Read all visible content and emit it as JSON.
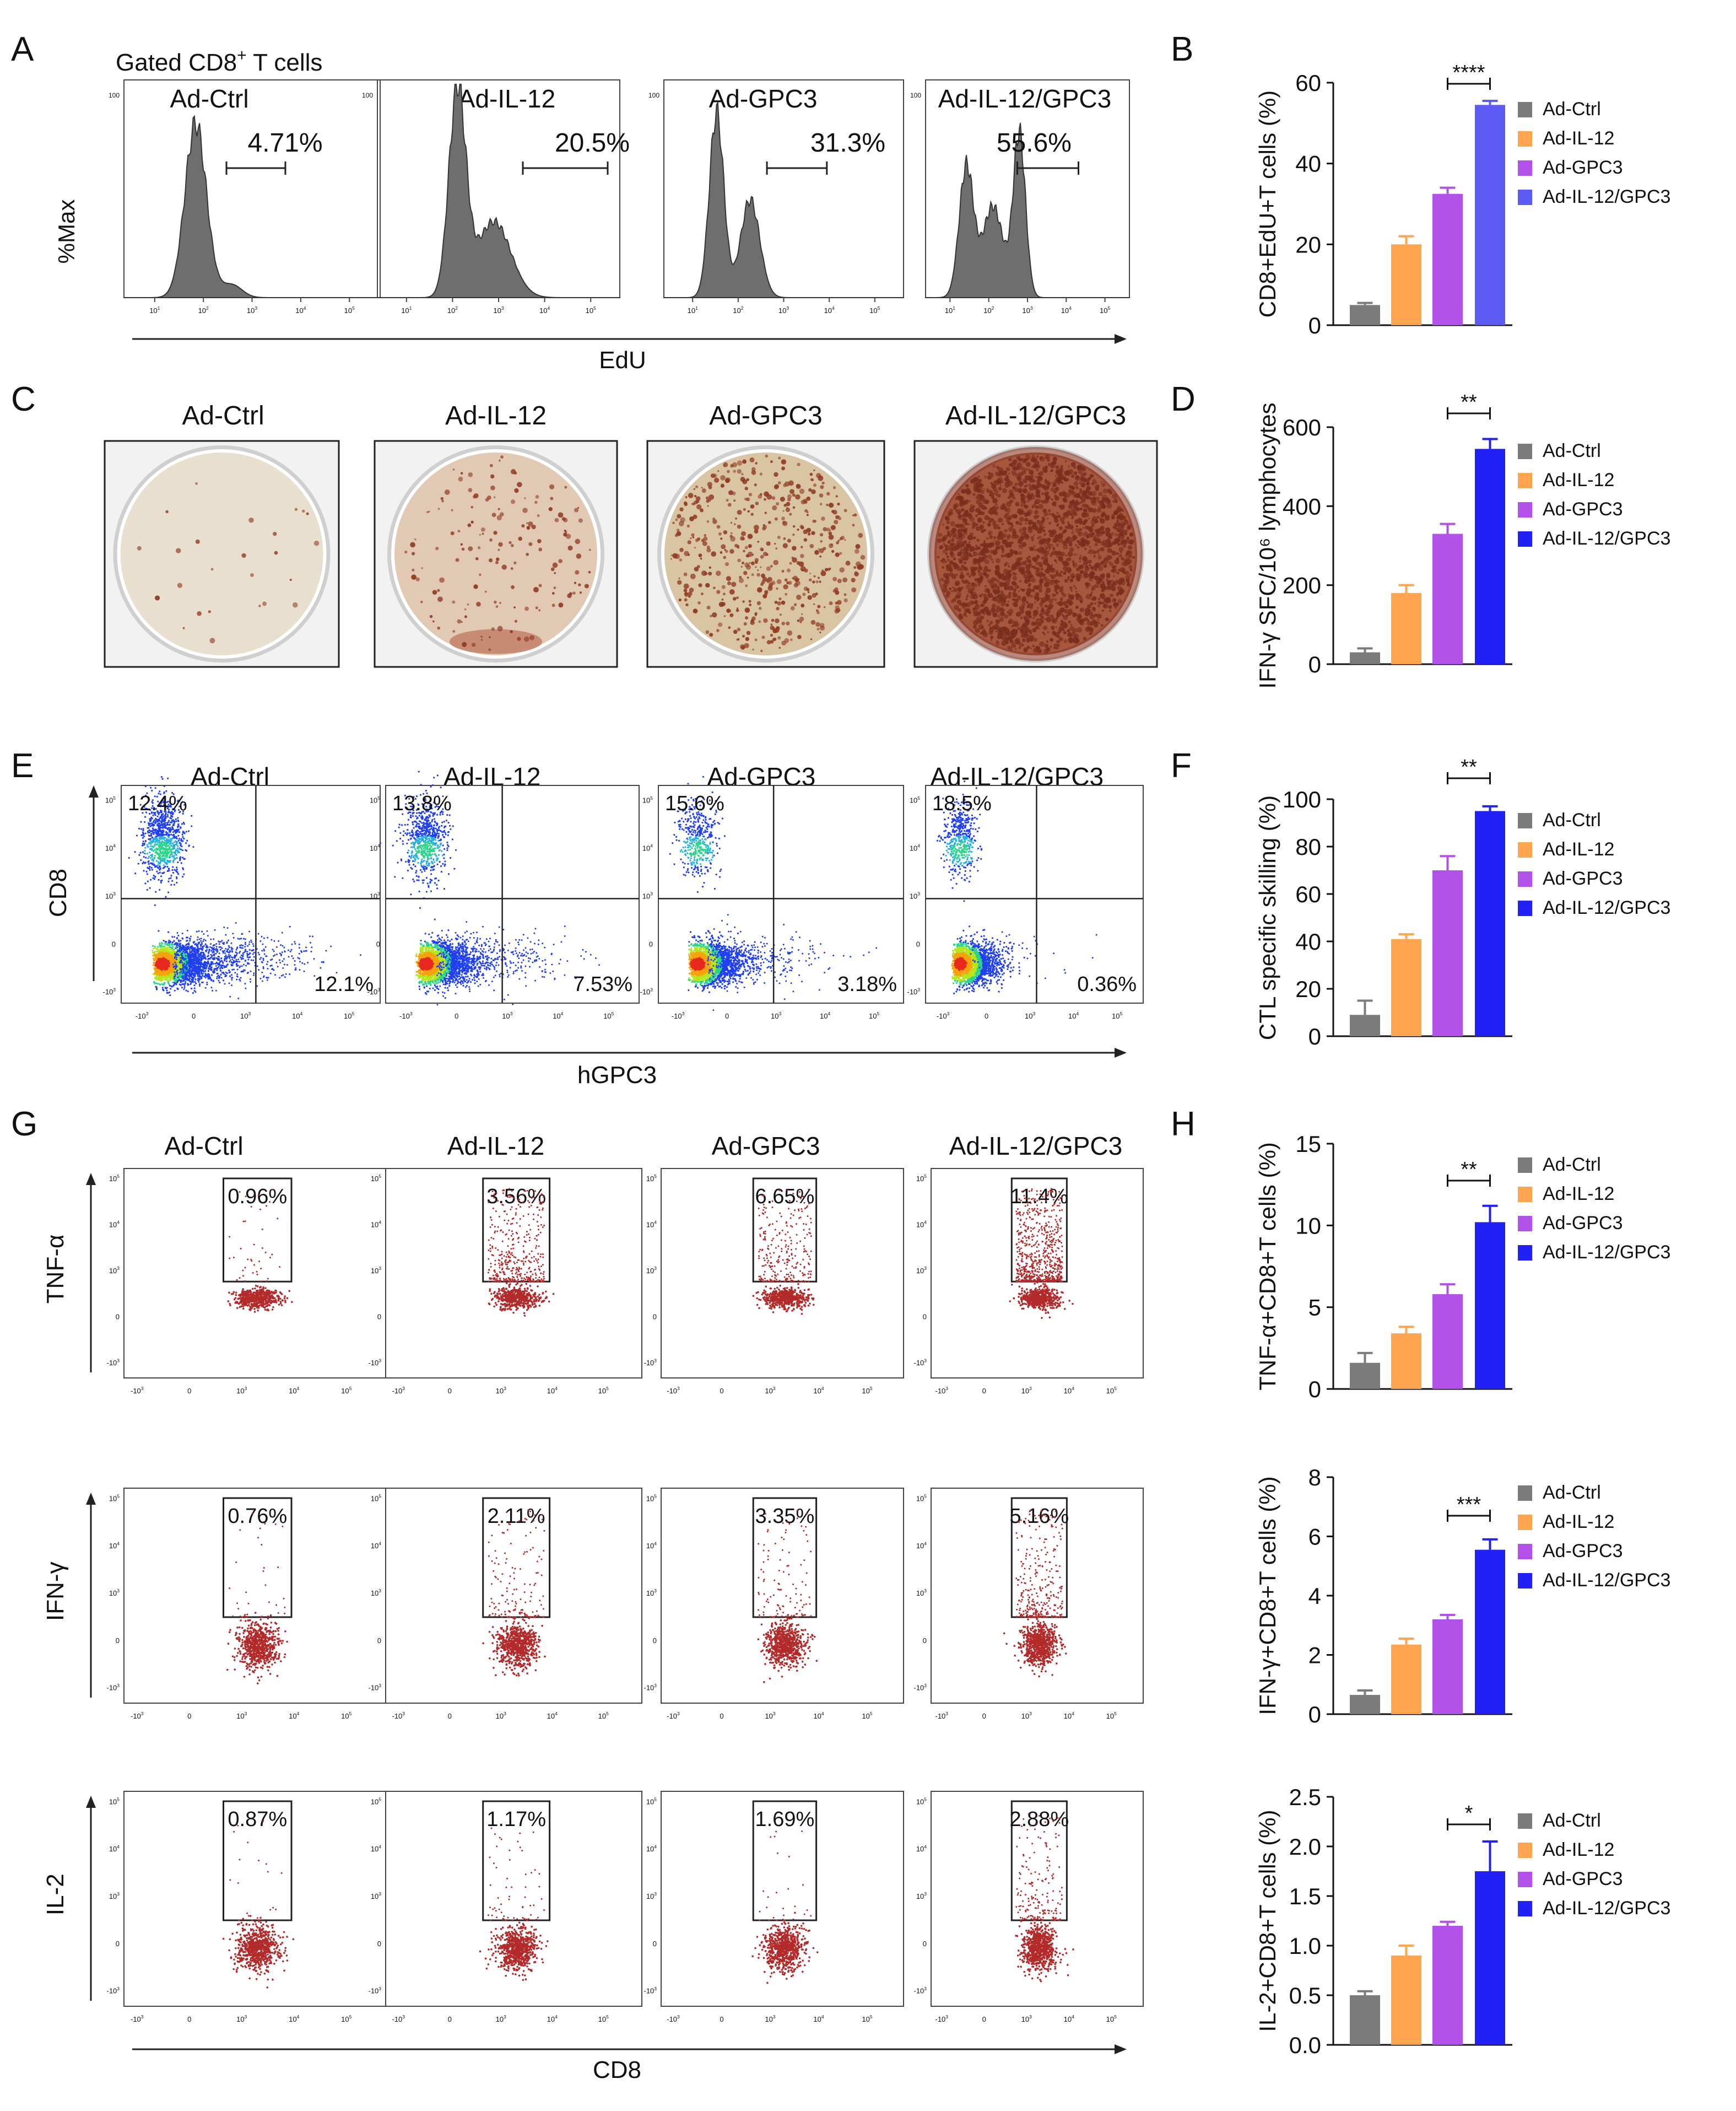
{
  "colors": {
    "ctrl": "#7b7b7b",
    "il12": "#ffa54f",
    "gpc3": "#b252e8",
    "combo": "#2121f5",
    "combo_b": "#5c5cf5",
    "hist_fill": "#6e6e6e",
    "dot": "#b22a2a",
    "axis": "#222222"
  },
  "panel_letters": [
    "A",
    "B",
    "C",
    "D",
    "E",
    "F",
    "G",
    "H"
  ],
  "groups": [
    "Ad-Ctrl",
    "Ad-IL-12",
    "Ad-GPC3",
    "Ad-IL-12/GPC3"
  ],
  "panel_a": {
    "header": "Gated CD8",
    "header_sup": "+",
    "header_rest": " T cells",
    "y_label": "%Max",
    "x_label": "EdU",
    "percents": [
      "4.71%",
      "20.5%",
      "31.3%",
      "55.6%"
    ],
    "ticks": [
      "10",
      "10",
      "10",
      "10",
      "10"
    ],
    "tick_exp": [
      "1",
      "2",
      "3",
      "4",
      "5"
    ],
    "ytick": "100"
  },
  "panel_c": {
    "titles": [
      "Ad-Ctrl",
      "Ad-IL-12",
      "Ad-GPC3",
      "Ad-IL-12/GPC3"
    ]
  },
  "panel_e": {
    "titles": [
      "Ad-Ctrl",
      "Ad-IL-12",
      "Ad-GPC3",
      "Ad-IL-12/GPC3"
    ],
    "upper_left": [
      "12.4%",
      "13.8%",
      "15.6%",
      "18.5%"
    ],
    "lower_right": [
      "12.1%",
      "7.53%",
      "3.18%",
      "0.36%"
    ],
    "y_label": "CD8",
    "x_label": "hGPC3",
    "xticks": [
      "-10",
      "0",
      "10",
      "10",
      "10"
    ],
    "xtick_exp": [
      "3",
      "",
      "3",
      "4",
      "5"
    ],
    "yticks": [
      "10",
      "10",
      "10",
      "0",
      "-10"
    ],
    "ytick_exp": [
      "5",
      "4",
      "3",
      "",
      "3"
    ]
  },
  "panel_g": {
    "titles": [
      "Ad-Ctrl",
      "Ad-IL-12",
      "Ad-GPC3",
      "Ad-IL-12/GPC3"
    ],
    "row_labels": [
      "TNF-α",
      "IFN-γ",
      "IL-2"
    ],
    "percents": [
      [
        "0.96%",
        "3.56%",
        "6.65%",
        "11.4%"
      ],
      [
        "0.76%",
        "2.11%",
        "3.35%",
        "5.16%"
      ],
      [
        "0.87%",
        "1.17%",
        "1.69%",
        "2.88%"
      ]
    ],
    "x_label": "CD8",
    "xticks": [
      "-10",
      "0",
      "10",
      "10",
      "10"
    ],
    "xtick_exp": [
      "3",
      "",
      "3",
      "4",
      "5"
    ],
    "yticks": [
      "10",
      "10",
      "10",
      "0",
      "-10"
    ],
    "ytick_exp": [
      "5",
      "4",
      "3",
      "",
      "3"
    ]
  },
  "chart_data": [
    {
      "id": "B",
      "type": "bar",
      "categories": [
        "Ad-Ctrl",
        "Ad-IL-12",
        "Ad-GPC3",
        "Ad-IL-12/GPC3"
      ],
      "values": [
        5,
        20,
        32.5,
        54.5
      ],
      "errors": [
        0.5,
        2,
        1.5,
        1
      ],
      "ylim": [
        0,
        60
      ],
      "yticks": [
        "0",
        "20",
        "40",
        "60"
      ],
      "ytick_vals": [
        0,
        20,
        40,
        60
      ],
      "ylabel": "CD8+EdU+T cells (%)",
      "significance": "****",
      "legend": [
        "Ad-Ctrl",
        "Ad-IL-12",
        "Ad-GPC3",
        "Ad-IL-12/GPC3"
      ]
    },
    {
      "id": "D",
      "type": "bar",
      "categories": [
        "Ad-Ctrl",
        "Ad-IL-12",
        "Ad-GPC3",
        "Ad-IL-12/GPC3"
      ],
      "values": [
        30,
        180,
        330,
        545
      ],
      "errors": [
        10,
        20,
        25,
        25
      ],
      "ylim": [
        0,
        600
      ],
      "yticks": [
        "0",
        "200",
        "400",
        "600"
      ],
      "ytick_vals": [
        0,
        200,
        400,
        600
      ],
      "ylabel": "IFN-γ SFC/10⁶ lymphocytes",
      "significance": "**",
      "legend": [
        "Ad-Ctrl",
        "Ad-IL-12",
        "Ad-GPC3",
        "Ad-IL-12/GPC3"
      ]
    },
    {
      "id": "F",
      "type": "bar",
      "categories": [
        "Ad-Ctrl",
        "Ad-IL-12",
        "Ad-GPC3",
        "Ad-IL-12/GPC3"
      ],
      "values": [
        9,
        41,
        70,
        95
      ],
      "errors": [
        6,
        2,
        6,
        2
      ],
      "ylim": [
        0,
        100
      ],
      "yticks": [
        "0",
        "20",
        "40",
        "60",
        "80",
        "100"
      ],
      "ytick_vals": [
        0,
        20,
        40,
        60,
        80,
        100
      ],
      "ylabel": "CTL specific skilling (%)",
      "significance": "**",
      "legend": [
        "Ad-Ctrl",
        "Ad-IL-12",
        "Ad-GPC3",
        "Ad-IL-12/GPC3"
      ]
    },
    {
      "id": "H1",
      "type": "bar",
      "categories": [
        "Ad-Ctrl",
        "Ad-IL-12",
        "Ad-GPC3",
        "Ad-IL-12/GPC3"
      ],
      "values": [
        1.6,
        3.4,
        5.8,
        10.2
      ],
      "errors": [
        0.6,
        0.4,
        0.6,
        1.0
      ],
      "ylim": [
        0,
        15
      ],
      "yticks": [
        "0",
        "5",
        "10",
        "15"
      ],
      "ytick_vals": [
        0,
        5,
        10,
        15
      ],
      "ylabel": "TNF-α+CD8+T cells (%)",
      "significance": "**",
      "legend": [
        "Ad-Ctrl",
        "Ad-IL-12",
        "Ad-GPC3",
        "Ad-IL-12/GPC3"
      ]
    },
    {
      "id": "H2",
      "type": "bar",
      "categories": [
        "Ad-Ctrl",
        "Ad-IL-12",
        "Ad-GPC3",
        "Ad-IL-12/GPC3"
      ],
      "values": [
        0.65,
        2.35,
        3.2,
        5.55
      ],
      "errors": [
        0.15,
        0.2,
        0.15,
        0.35
      ],
      "ylim": [
        0,
        8
      ],
      "yticks": [
        "0",
        "2",
        "4",
        "6",
        "8"
      ],
      "ytick_vals": [
        0,
        2,
        4,
        6,
        8
      ],
      "ylabel": "IFN-γ+CD8+T cells (%)",
      "significance": "***",
      "legend": [
        "Ad-Ctrl",
        "Ad-IL-12",
        "Ad-GPC3",
        "Ad-IL-12/GPC3"
      ]
    },
    {
      "id": "H3",
      "type": "bar",
      "categories": [
        "Ad-Ctrl",
        "Ad-IL-12",
        "Ad-GPC3",
        "Ad-IL-12/GPC3"
      ],
      "values": [
        0.5,
        0.9,
        1.2,
        1.75
      ],
      "errors": [
        0.04,
        0.1,
        0.04,
        0.3
      ],
      "ylim": [
        0,
        2.5
      ],
      "yticks": [
        "0.0",
        "0.5",
        "1.0",
        "1.5",
        "2.0",
        "2.5"
      ],
      "ytick_vals": [
        0,
        0.5,
        1.0,
        1.5,
        2.0,
        2.5
      ],
      "ylabel": "IL-2+CD8+T cells (%)",
      "significance": "*",
      "legend": [
        "Ad-Ctrl",
        "Ad-IL-12",
        "Ad-GPC3",
        "Ad-IL-12/GPC3"
      ]
    }
  ]
}
